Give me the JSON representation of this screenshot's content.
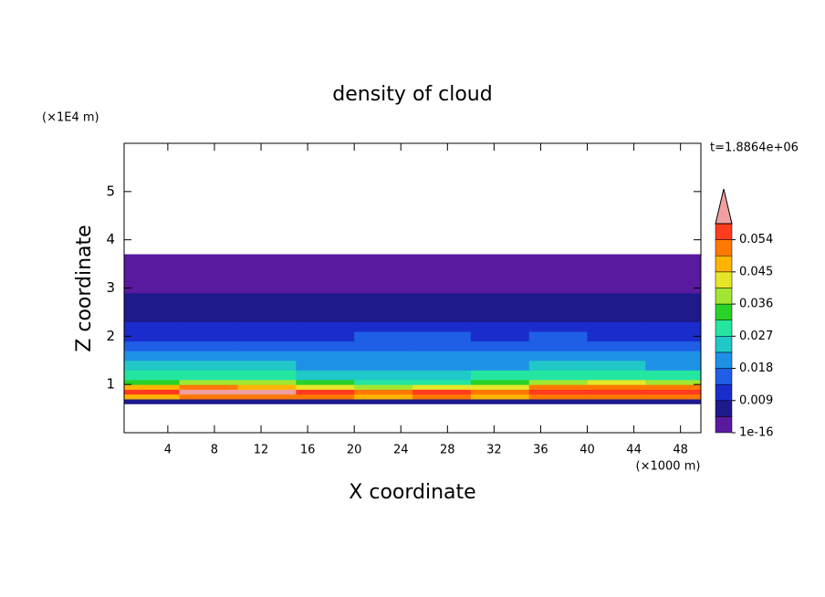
{
  "chart_data": {
    "type": "contour",
    "title": "density of cloud",
    "xlabel": "X coordinate",
    "ylabel": "Z coordinate",
    "xunit": "(×1000 m)",
    "yunit": "(×1E4 m)",
    "time_label": "t=1.8864e+06",
    "xlim": [
      0.25,
      49.75
    ],
    "ylim": [
      0,
      6
    ],
    "xticks": [
      4,
      8,
      12,
      16,
      20,
      24,
      28,
      32,
      36,
      40,
      44,
      48
    ],
    "yticks": [
      1,
      2,
      3,
      4,
      5
    ],
    "field": {
      "x_edges": [
        0.25,
        5,
        10,
        15,
        20,
        25,
        30,
        35,
        40,
        45,
        49.75
      ],
      "z_edges": [
        0.6,
        0.7,
        0.8,
        0.9,
        1.0,
        1.1,
        1.3,
        1.5,
        1.7,
        1.9,
        2.1,
        2.3,
        2.5,
        2.7,
        2.9,
        3.1,
        3.3,
        3.5,
        3.7
      ],
      "values": [
        [
          0.006,
          0.006,
          0.006,
          0.006,
          0.006,
          0.006,
          0.006,
          0.006,
          0.006,
          0.006
        ],
        [
          0.048,
          0.05,
          0.052,
          0.05,
          0.048,
          0.05,
          0.049,
          0.05,
          0.052,
          0.05
        ],
        [
          0.054,
          0.06,
          0.06,
          0.055,
          0.052,
          0.054,
          0.053,
          0.055,
          0.056,
          0.054
        ],
        [
          0.045,
          0.05,
          0.048,
          0.042,
          0.04,
          0.042,
          0.044,
          0.05,
          0.052,
          0.05
        ],
        [
          0.035,
          0.038,
          0.036,
          0.032,
          0.03,
          0.03,
          0.032,
          0.04,
          0.042,
          0.04
        ],
        [
          0.028,
          0.03,
          0.03,
          0.026,
          0.025,
          0.026,
          0.027,
          0.03,
          0.03,
          0.028
        ],
        [
          0.023,
          0.024,
          0.023,
          0.022,
          0.022,
          0.022,
          0.022,
          0.024,
          0.024,
          0.022
        ],
        [
          0.019,
          0.019,
          0.018,
          0.018,
          0.02,
          0.02,
          0.019,
          0.02,
          0.019,
          0.018
        ],
        [
          0.016,
          0.015,
          0.015,
          0.016,
          0.017,
          0.017,
          0.016,
          0.017,
          0.016,
          0.015
        ],
        [
          0.013,
          0.012,
          0.012,
          0.013,
          0.014,
          0.014,
          0.013,
          0.014,
          0.013,
          0.012
        ],
        [
          0.011,
          0.01,
          0.01,
          0.01,
          0.01,
          0.01,
          0.01,
          0.01,
          0.01,
          0.01
        ],
        [
          0.008,
          0.008,
          0.008,
          0.008,
          0.008,
          0.008,
          0.008,
          0.008,
          0.008,
          0.008
        ],
        [
          0.006,
          0.006,
          0.006,
          0.006,
          0.006,
          0.006,
          0.006,
          0.006,
          0.006,
          0.006
        ],
        [
          0.005,
          0.005,
          0.005,
          0.005,
          0.005,
          0.005,
          0.005,
          0.005,
          0.005,
          0.005
        ],
        [
          0.004,
          0.004,
          0.004,
          0.004,
          0.004,
          0.004,
          0.004,
          0.004,
          0.004,
          0.004
        ],
        [
          0.002,
          0.002,
          0.002,
          0.002,
          0.002,
          0.002,
          0.002,
          0.002,
          0.002,
          0.002
        ],
        [
          0.002,
          0.002,
          0.002,
          0.002,
          0.002,
          0.002,
          0.002,
          0.002,
          0.002,
          0.002
        ],
        [
          0.001,
          0.001,
          0.001,
          0.001,
          0.001,
          0.001,
          0.001,
          0.001,
          0.001,
          0.001
        ]
      ]
    },
    "colorbar": {
      "levels": [
        1e-16,
        0.0045,
        0.009,
        0.0135,
        0.018,
        0.0225,
        0.027,
        0.0315,
        0.036,
        0.0405,
        0.045,
        0.0495,
        0.054,
        0.0585
      ],
      "ticks": [
        {
          "value": 1e-16,
          "label": "1e-16"
        },
        0.009,
        0.018,
        0.027,
        0.036,
        0.045,
        0.054
      ],
      "colors": [
        "#5a1aa0",
        "#1e1a8c",
        "#1a2dcc",
        "#1f5fe6",
        "#1e90e6",
        "#20c8c8",
        "#24e6a0",
        "#28d228",
        "#a0e632",
        "#e6e628",
        "#ffb400",
        "#ff7800",
        "#ff3c1e",
        "#f0a0a0"
      ]
    }
  }
}
